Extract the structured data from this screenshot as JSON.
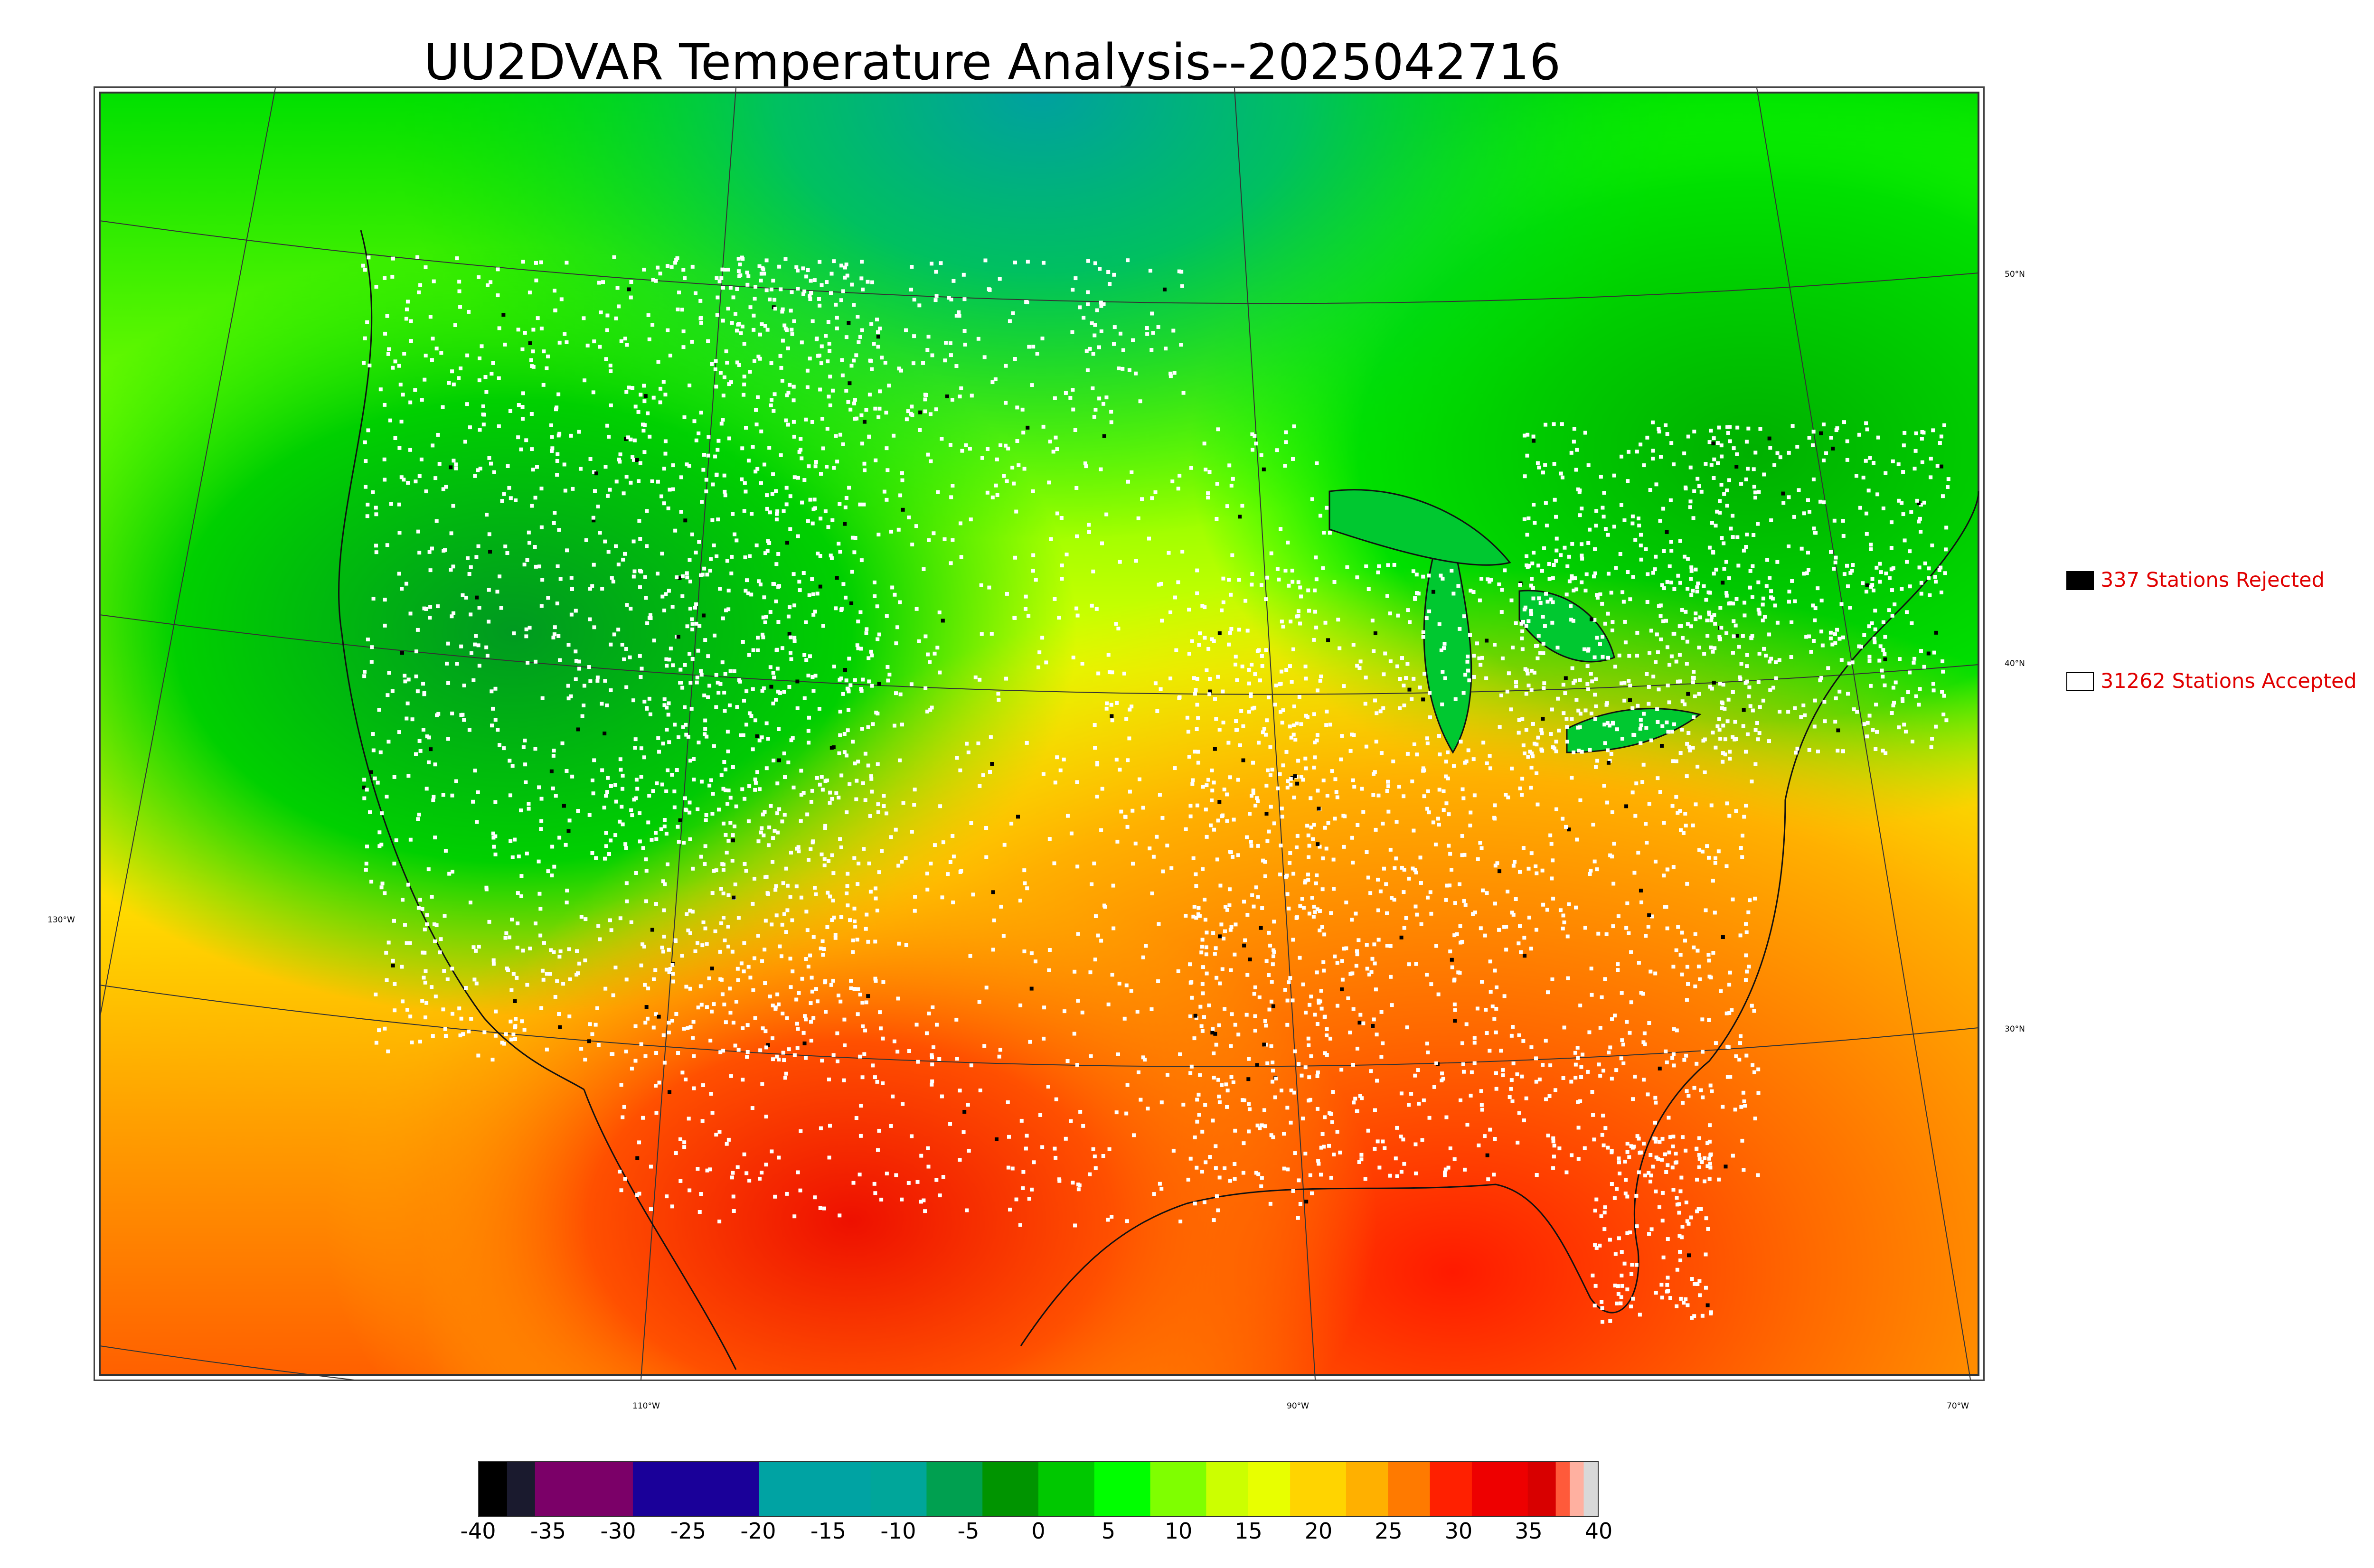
{
  "title": "UU2DVAR Temperature Analysis--2025042716",
  "map": {
    "latitude_labels": [
      "50°N",
      "40°N",
      "30°N"
    ],
    "longitude_labels": [
      "130°W",
      "110°W",
      "90°W",
      "70°W"
    ]
  },
  "legend": {
    "rejected": {
      "label": "337 Stations Rejected",
      "swatch_color": "#000000"
    },
    "accepted": {
      "label": "31262 Stations Accepted",
      "swatch_color": "#ffffff"
    },
    "text_color": "#e00000"
  },
  "colorbar": {
    "ticks": [
      "-40",
      "-35",
      "-30",
      "-25",
      "-20",
      "-15",
      "-10",
      "-5",
      "0",
      "5",
      "10",
      "15",
      "20",
      "25",
      "30",
      "35",
      "40"
    ],
    "range": [
      -40,
      40
    ],
    "bands": [
      {
        "from": -40,
        "to": -38,
        "color": "#000000"
      },
      {
        "from": -38,
        "to": -36,
        "color": "#1a1a2e"
      },
      {
        "from": -36,
        "to": -29,
        "color": "#7b0068"
      },
      {
        "from": -29,
        "to": -20,
        "color": "#1a0099"
      },
      {
        "from": -20,
        "to": -12,
        "color": "#00a3a3"
      },
      {
        "from": -12,
        "to": -8,
        "color": "#00a69a"
      },
      {
        "from": -8,
        "to": -4,
        "color": "#00a050"
      },
      {
        "from": -4,
        "to": 0,
        "color": "#009400"
      },
      {
        "from": 0,
        "to": 4,
        "color": "#00c800"
      },
      {
        "from": 4,
        "to": 8,
        "color": "#00ff00"
      },
      {
        "from": 8,
        "to": 12,
        "color": "#7fff00"
      },
      {
        "from": 12,
        "to": 15,
        "color": "#ccff00"
      },
      {
        "from": 15,
        "to": 18,
        "color": "#e8ff00"
      },
      {
        "from": 18,
        "to": 22,
        "color": "#ffd400"
      },
      {
        "from": 22,
        "to": 25,
        "color": "#ffb000"
      },
      {
        "from": 25,
        "to": 28,
        "color": "#ff7a00"
      },
      {
        "from": 28,
        "to": 31,
        "color": "#ff2000"
      },
      {
        "from": 31,
        "to": 35,
        "color": "#ee0000"
      },
      {
        "from": 35,
        "to": 37,
        "color": "#d80000"
      },
      {
        "from": 37,
        "to": 38,
        "color": "#ff5a3a"
      },
      {
        "from": 38,
        "to": 39,
        "color": "#ffb0a0"
      },
      {
        "from": 39,
        "to": 40,
        "color": "#d8d8d8"
      }
    ]
  }
}
